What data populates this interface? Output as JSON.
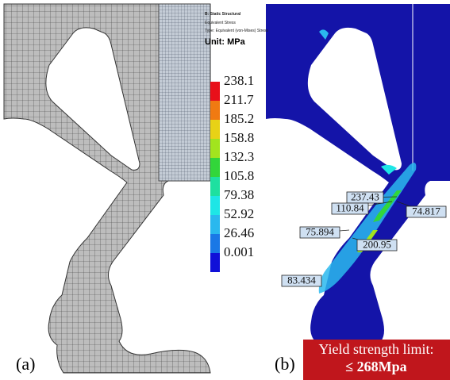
{
  "header": {
    "analysis": "B: Static Structural",
    "result": "Equivalent Stress",
    "result_type": "Type: Equivalent (von-Mises) Stress",
    "unit": "Unit: MPa"
  },
  "legend": {
    "labels": [
      "238.1",
      "211.7",
      "185.2",
      "158.8",
      "132.3",
      "105.8",
      "79.38",
      "52.92",
      "26.46",
      "0.001"
    ],
    "colors": [
      "#e8101a",
      "#f07a12",
      "#e8d216",
      "#a2e41e",
      "#32d63a",
      "#1ee0a0",
      "#1ee6e6",
      "#2ab8ee",
      "#1a78e6",
      "#1010d8"
    ]
  },
  "callouts": [
    "237.43",
    "110.84",
    "74.817",
    "75.894",
    "200.95",
    "83.434"
  ],
  "panels": {
    "a": "(a)",
    "b": "(b)"
  },
  "yield_box": {
    "line1": "Yield strength limit:",
    "line2": "≤ 268Mpa"
  }
}
